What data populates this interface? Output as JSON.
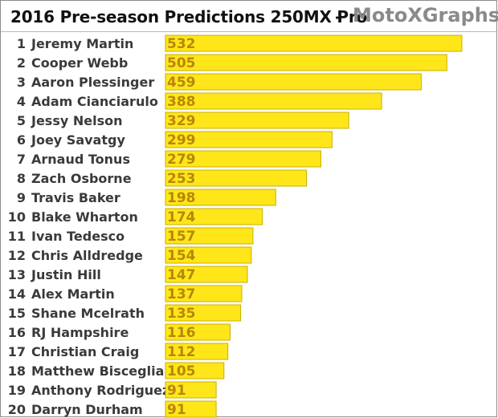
{
  "title": "2016 Pre-season Predictions 250MX Pro",
  "separator": "-",
  "brand": "MotoXGraphs",
  "colors": {
    "bar_fill": "#ffe619",
    "bar_stroke": "#c8b000",
    "value_text": "#b8860b"
  },
  "chart_data": {
    "type": "bar",
    "orientation": "horizontal",
    "categories": [
      "Jeremy Martin",
      "Cooper Webb",
      "Aaron Plessinger",
      "Adam Cianciarulo",
      "Jessy Nelson",
      "Joey Savatgy",
      "Arnaud Tonus",
      "Zach Osborne",
      "Travis Baker",
      "Blake Wharton",
      "Ivan Tedesco",
      "Chris Alldredge",
      "Justin Hill",
      "Alex Martin",
      "Shane Mcelrath",
      "RJ Hampshire",
      "Christian Craig",
      "Matthew Bisceglia",
      "Anthony Rodriguez",
      "Darryn Durham"
    ],
    "ranks": [
      "1",
      "2",
      "3",
      "4",
      "5",
      "6",
      "7",
      "8",
      "9",
      "10",
      "11",
      "12",
      "13",
      "14",
      "15",
      "16",
      "17",
      "18",
      "19",
      "20"
    ],
    "values": [
      532,
      505,
      459,
      388,
      329,
      299,
      279,
      253,
      198,
      174,
      157,
      154,
      147,
      137,
      135,
      116,
      112,
      105,
      91,
      91
    ],
    "title": "2016 Pre-season Predictions 250MX Pro",
    "xlim": [
      0,
      532
    ]
  }
}
